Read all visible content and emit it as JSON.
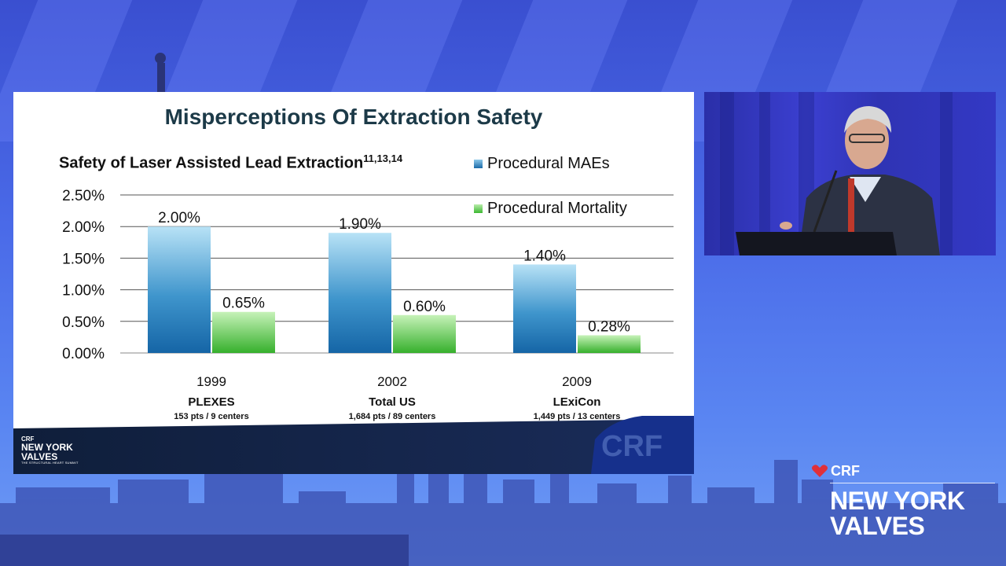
{
  "slide": {
    "title": "Misperceptions Of Extraction Safety",
    "footer_logo": {
      "crf": "CRF",
      "name": "NEW YORK VALVES",
      "tagline": "THE STRUCTURAL HEART SUMMIT",
      "watermark": "CRF"
    }
  },
  "chart_data": {
    "type": "bar",
    "title": "Safety of Laser Assisted Lead Extraction",
    "title_superscript": "11,13,14",
    "categories": [
      "1999",
      "2002",
      "2009"
    ],
    "category_names": [
      "PLEXES",
      "Total US",
      "LExiCon"
    ],
    "category_details": [
      "153 pts / 9 centers",
      "1,684 pts / 89 centers",
      "1,449 pts / 13 centers"
    ],
    "series": [
      {
        "name": "Procedural MAEs",
        "values": [
          2.0,
          1.9,
          1.4
        ],
        "labels": [
          "2.00%",
          "1.90%",
          "1.40%"
        ],
        "color": "#1f78b8"
      },
      {
        "name": "Procedural Mortality",
        "values": [
          0.65,
          0.6,
          0.28
        ],
        "labels": [
          "0.65%",
          "0.60%",
          "0.28%"
        ],
        "color": "#46c23a"
      }
    ],
    "ylim": [
      0,
      2.5
    ],
    "yticks": [
      0,
      0.5,
      1.0,
      1.5,
      2.0,
      2.5
    ],
    "ytick_labels": [
      "0.00%",
      "0.50%",
      "1.00%",
      "1.50%",
      "2.00%",
      "2.50%"
    ],
    "grid": true,
    "legend_position": "top-right"
  },
  "branding": {
    "crf": "CRF",
    "line1": "NEW YORK",
    "line2": "VALVES"
  }
}
